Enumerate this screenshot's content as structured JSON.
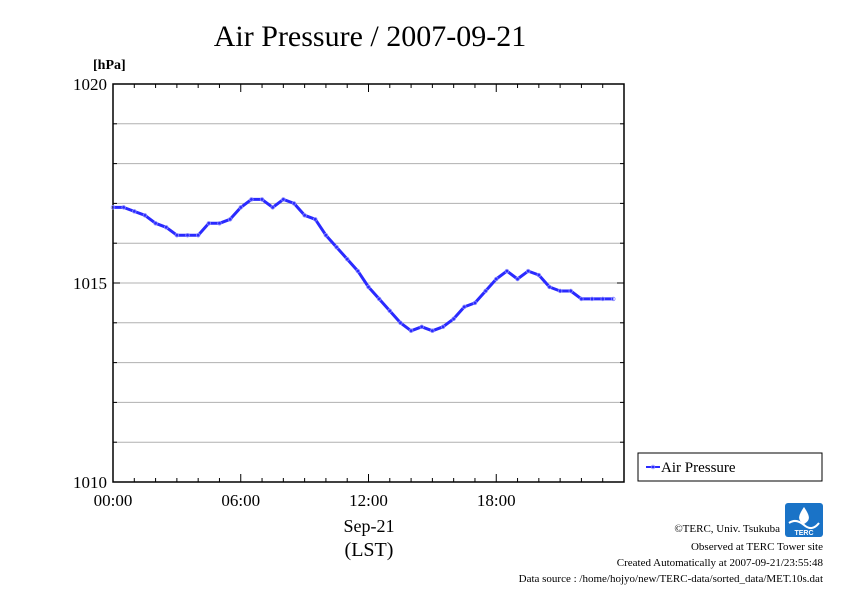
{
  "colors": {
    "series": "#2a2aff",
    "marker": "#8a8aff",
    "grid": "#b0b0b0",
    "axis": "#000000",
    "logo": "#1a73c7"
  },
  "chart_data": {
    "type": "line",
    "title": "Air Pressure / 2007-09-21",
    "ylabel": "[hPa]",
    "xlabel_date": "Sep-21",
    "xlabel_tz": "(LST)",
    "ylim": [
      1010,
      1020
    ],
    "xlim_hours": [
      0,
      24
    ],
    "y_ticks": [
      {
        "v": 1020,
        "label": "1020"
      },
      {
        "v": 1015,
        "label": "1015"
      },
      {
        "v": 1010,
        "label": "1010"
      }
    ],
    "x_ticks": [
      {
        "h": 0,
        "label": "00:00"
      },
      {
        "h": 6,
        "label": "06:00"
      },
      {
        "h": 12,
        "label": "12:00"
      },
      {
        "h": 18,
        "label": "18:00"
      }
    ],
    "grid": true,
    "legend": {
      "position": "right-bottom",
      "entries": [
        "Air Pressure"
      ]
    },
    "series": [
      {
        "name": "Air Pressure",
        "x_hours": [
          0,
          0.5,
          1,
          1.5,
          2,
          2.5,
          3,
          3.5,
          4,
          4.5,
          5,
          5.5,
          6,
          6.5,
          7,
          7.5,
          8,
          8.5,
          9,
          9.5,
          10,
          10.5,
          11,
          11.5,
          12,
          12.5,
          13,
          13.5,
          14,
          14.5,
          15,
          15.5,
          16,
          16.5,
          17,
          17.5,
          18,
          18.5,
          19,
          19.5,
          20,
          20.5,
          21,
          21.5,
          22,
          22.5,
          23,
          23.5
        ],
        "values": [
          1016.9,
          1016.9,
          1016.8,
          1016.7,
          1016.5,
          1016.4,
          1016.2,
          1016.2,
          1016.2,
          1016.5,
          1016.5,
          1016.6,
          1016.9,
          1017.1,
          1017.1,
          1016.9,
          1017.1,
          1017.0,
          1016.7,
          1016.6,
          1016.2,
          1015.9,
          1015.6,
          1015.3,
          1014.9,
          1014.6,
          1014.3,
          1014.0,
          1013.8,
          1013.9,
          1013.8,
          1013.9,
          1014.1,
          1014.4,
          1014.5,
          1014.8,
          1015.1,
          1015.3,
          1015.1,
          1015.3,
          1015.2,
          1014.9,
          1014.8,
          1014.8,
          1014.6,
          1014.6,
          1014.6,
          1014.6
        ]
      }
    ]
  },
  "footer": {
    "copyright": "©TERC, Univ. Tsukuba",
    "observed": "Observed at TERC Tower site",
    "created": "Created Automatically at 2007-09-21/23:55:48",
    "source": "Data source : /home/hojyo/new/TERC-data/sorted_data/MET.10s.dat",
    "logo_text": "TERC"
  }
}
